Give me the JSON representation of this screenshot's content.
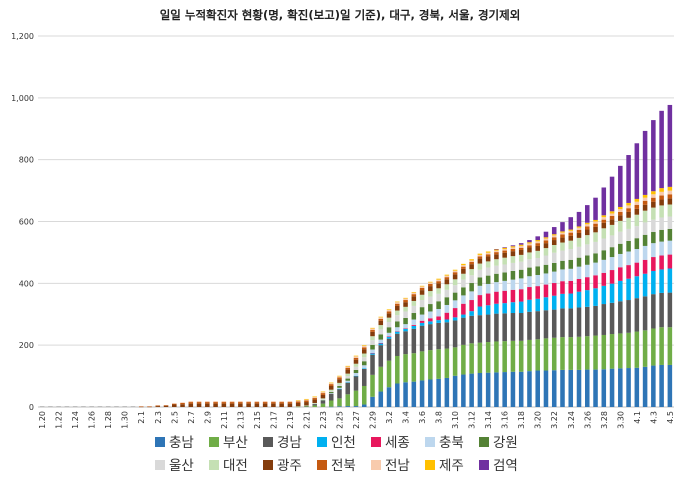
{
  "chart_data": {
    "type": "bar",
    "stacked": true,
    "title": "일일 누적확진자 현황(명, 확진(보고)일 기준), 대구, 경북, 서울, 경기제외",
    "xlabel": "",
    "ylabel": "",
    "ylim": [
      0,
      1200
    ],
    "yticks": [
      "0",
      "200",
      "400",
      "600",
      "800",
      "1,000",
      "1,200"
    ],
    "grid": "horizontal",
    "legend_position": "bottom",
    "categories": [
      "1.20",
      "1.21",
      "1.22",
      "1.23",
      "1.24",
      "1.25",
      "1.26",
      "1.27",
      "1.28",
      "1.29",
      "1.30",
      "1.31",
      "2.1",
      "2.2",
      "2.3",
      "2.4",
      "2.5",
      "2.6",
      "2.7",
      "2.8",
      "2.9",
      "2.10",
      "2.11",
      "2.12",
      "2.13",
      "2.14",
      "2.15",
      "2.16",
      "2.17",
      "2.18",
      "2.19",
      "2.20",
      "2.21",
      "2.22",
      "2.23",
      "2.24",
      "2.25",
      "2.26",
      "2.27",
      "2.28",
      "2.29",
      "3.1",
      "3.2",
      "3.3",
      "3.4",
      "3.5",
      "3.6",
      "3.7",
      "3.8",
      "3.9",
      "3.10",
      "3.11",
      "3.12",
      "3.13",
      "3.14",
      "3.15",
      "3.16",
      "3.17",
      "3.18",
      "3.19",
      "3.20",
      "3.21",
      "3.22",
      "3.23",
      "3.24",
      "3.25",
      "3.26",
      "3.27",
      "3.28",
      "3.29",
      "3.30",
      "3.31",
      "4.1",
      "4.2",
      "4.3",
      "4.4",
      "4.5"
    ],
    "tick_labels_shown": [
      "1.20",
      "1.22",
      "1.24",
      "1.26",
      "1.28",
      "1.30",
      "2.1",
      "2.3",
      "2.5",
      "2.7",
      "2.9",
      "2.11",
      "2.13",
      "2.15",
      "2.17",
      "2.19",
      "2.21",
      "2.23",
      "2.25",
      "2.27",
      "2.29",
      "3.2",
      "3.4",
      "3.6",
      "3.8",
      "3.10",
      "3.12",
      "3.14",
      "3.16",
      "3.18",
      "3.20",
      "3.22",
      "3.24",
      "3.26",
      "3.28",
      "3.30",
      "4.1",
      "4.3",
      "4.5"
    ],
    "series": [
      {
        "name": "충남",
        "color": "#2E75B6",
        "values": [
          0,
          0,
          0,
          0,
          0,
          0,
          0,
          0,
          0,
          0,
          0,
          0,
          0,
          0,
          0,
          0,
          0,
          0,
          0,
          0,
          0,
          0,
          0,
          0,
          0,
          0,
          0,
          0,
          0,
          0,
          0,
          0,
          0,
          0,
          0,
          1,
          2,
          3,
          3,
          8,
          33,
          50,
          64,
          76,
          80,
          82,
          86,
          89,
          91,
          94,
          101,
          105,
          108,
          110,
          111,
          112,
          113,
          114,
          114,
          116,
          118,
          118,
          119,
          120,
          120,
          120,
          121,
          121,
          122,
          124,
          125,
          126,
          127,
          130,
          134,
          136,
          136
        ]
      },
      {
        "name": "부산",
        "color": "#70AD47",
        "values": [
          0,
          0,
          0,
          0,
          0,
          0,
          0,
          0,
          0,
          0,
          0,
          0,
          0,
          0,
          0,
          0,
          0,
          0,
          0,
          0,
          0,
          0,
          0,
          0,
          0,
          0,
          0,
          0,
          0,
          0,
          0,
          1,
          2,
          5,
          11,
          20,
          26,
          38,
          50,
          60,
          71,
          80,
          86,
          89,
          91,
          92,
          94,
          95,
          96,
          95,
          92,
          96,
          98,
          98,
          99,
          100,
          100,
          100,
          100,
          101,
          101,
          104,
          105,
          106,
          106,
          107,
          108,
          110,
          111,
          112,
          113,
          114,
          117,
          118,
          120,
          122,
          122
        ]
      },
      {
        "name": "경남",
        "color": "#595959",
        "values": [
          0,
          0,
          0,
          0,
          0,
          0,
          0,
          0,
          0,
          0,
          0,
          0,
          0,
          0,
          0,
          0,
          0,
          0,
          0,
          0,
          0,
          0,
          0,
          0,
          0,
          0,
          0,
          0,
          0,
          0,
          0,
          0,
          2,
          5,
          10,
          22,
          30,
          38,
          47,
          55,
          65,
          70,
          71,
          72,
          74,
          79,
          83,
          84,
          85,
          85,
          87,
          88,
          89,
          89,
          89,
          90,
          90,
          90,
          90,
          91,
          91,
          91,
          91,
          93,
          93,
          95,
          95,
          96,
          100,
          101,
          104,
          106,
          108,
          110,
          111,
          111,
          112
        ]
      },
      {
        "name": "인천",
        "color": "#00B0F0",
        "values": [
          0,
          0,
          0,
          0,
          0,
          0,
          0,
          0,
          0,
          0,
          0,
          0,
          0,
          0,
          0,
          0,
          0,
          0,
          0,
          0,
          0,
          0,
          0,
          0,
          0,
          0,
          0,
          0,
          0,
          0,
          0,
          0,
          0,
          0,
          0,
          0,
          1,
          1,
          1,
          2,
          5,
          6,
          6,
          7,
          8,
          9,
          9,
          9,
          9,
          9,
          10,
          10,
          15,
          28,
          30,
          32,
          33,
          35,
          37,
          39,
          40,
          42,
          45,
          47,
          48,
          51,
          54,
          57,
          59,
          62,
          66,
          69,
          71,
          73,
          75,
          76,
          78
        ]
      },
      {
        "name": "세종",
        "color": "#E8175D",
        "values": [
          0,
          0,
          0,
          0,
          0,
          0,
          0,
          0,
          0,
          0,
          0,
          0,
          0,
          0,
          0,
          0,
          0,
          0,
          0,
          0,
          0,
          0,
          0,
          0,
          0,
          0,
          0,
          0,
          0,
          0,
          0,
          0,
          0,
          0,
          0,
          0,
          0,
          0,
          0,
          0,
          1,
          1,
          1,
          1,
          1,
          3,
          7,
          10,
          12,
          22,
          30,
          35,
          36,
          37,
          38,
          39,
          40,
          40,
          40,
          41,
          41,
          41,
          41,
          41,
          41,
          41,
          42,
          42,
          42,
          44,
          44,
          44,
          44,
          45,
          45,
          45,
          45
        ]
      },
      {
        "name": "충북",
        "color": "#BDD7EE",
        "values": [
          0,
          0,
          0,
          0,
          0,
          0,
          0,
          0,
          0,
          0,
          0,
          0,
          0,
          0,
          0,
          0,
          0,
          0,
          0,
          0,
          0,
          0,
          0,
          0,
          0,
          0,
          0,
          0,
          0,
          0,
          0,
          0,
          0,
          0,
          1,
          2,
          3,
          5,
          9,
          10,
          11,
          11,
          12,
          13,
          14,
          18,
          20,
          22,
          24,
          25,
          25,
          27,
          28,
          30,
          31,
          31,
          32,
          33,
          35,
          35,
          36,
          36,
          37,
          38,
          39,
          40,
          40,
          41,
          42,
          42,
          43,
          44,
          44,
          45,
          45,
          45,
          45
        ]
      },
      {
        "name": "강원",
        "color": "#548235",
        "values": [
          0,
          0,
          0,
          0,
          0,
          0,
          0,
          0,
          0,
          0,
          0,
          0,
          0,
          0,
          0,
          0,
          0,
          0,
          0,
          0,
          0,
          0,
          0,
          0,
          0,
          0,
          0,
          0,
          0,
          0,
          0,
          0,
          0,
          0,
          1,
          4,
          6,
          7,
          10,
          13,
          15,
          17,
          18,
          19,
          20,
          21,
          24,
          24,
          25,
          25,
          25,
          26,
          27,
          27,
          27,
          27,
          27,
          28,
          28,
          28,
          28,
          28,
          28,
          28,
          29,
          29,
          30,
          30,
          31,
          32,
          33,
          34,
          35,
          36,
          36,
          38,
          38
        ]
      },
      {
        "name": "울산",
        "color": "#D9D9D9",
        "values": [
          0,
          0,
          0,
          0,
          0,
          0,
          0,
          0,
          0,
          0,
          0,
          0,
          0,
          0,
          0,
          0,
          0,
          0,
          0,
          0,
          0,
          0,
          0,
          0,
          0,
          0,
          0,
          0,
          0,
          0,
          0,
          0,
          0,
          1,
          2,
          3,
          5,
          8,
          10,
          13,
          15,
          16,
          17,
          20,
          21,
          23,
          23,
          24,
          24,
          24,
          24,
          25,
          25,
          25,
          26,
          26,
          26,
          26,
          26,
          27,
          27,
          30,
          33,
          33,
          35,
          35,
          36,
          37,
          38,
          38,
          39,
          39,
          39,
          40,
          40,
          40,
          40
        ]
      },
      {
        "name": "대전",
        "color": "#C5E0B4",
        "values": [
          0,
          0,
          0,
          0,
          0,
          0,
          0,
          0,
          0,
          0,
          0,
          0,
          0,
          0,
          0,
          0,
          0,
          0,
          0,
          0,
          0,
          0,
          0,
          0,
          0,
          0,
          0,
          0,
          0,
          0,
          0,
          1,
          1,
          2,
          3,
          4,
          5,
          8,
          10,
          12,
          13,
          14,
          14,
          15,
          15,
          16,
          17,
          18,
          18,
          18,
          19,
          19,
          20,
          20,
          20,
          21,
          22,
          22,
          22,
          22,
          23,
          24,
          25,
          26,
          27,
          29,
          30,
          31,
          33,
          34,
          35,
          36,
          37,
          38,
          39,
          39,
          39
        ]
      },
      {
        "name": "광주",
        "color": "#843C0C",
        "values": [
          0,
          0,
          0,
          0,
          0,
          0,
          0,
          0,
          0,
          0,
          0,
          0,
          1,
          1,
          3,
          4,
          8,
          9,
          11,
          11,
          11,
          11,
          11,
          11,
          11,
          11,
          11,
          11,
          11,
          11,
          11,
          11,
          11,
          11,
          11,
          12,
          12,
          13,
          13,
          14,
          14,
          14,
          14,
          15,
          15,
          15,
          15,
          16,
          16,
          16,
          16,
          16,
          16,
          16,
          16,
          16,
          16,
          16,
          16,
          16,
          16,
          16,
          16,
          16,
          16,
          16,
          18,
          18,
          18,
          18,
          18,
          19,
          19,
          19,
          19,
          19,
          20
        ]
      },
      {
        "name": "전북",
        "color": "#C55A11",
        "values": [
          0,
          0,
          0,
          0,
          0,
          0,
          0,
          0,
          0,
          0,
          0,
          0,
          1,
          1,
          2,
          2,
          3,
          4,
          5,
          5,
          5,
          5,
          5,
          5,
          5,
          5,
          5,
          5,
          5,
          5,
          5,
          5,
          5,
          5,
          6,
          6,
          6,
          6,
          6,
          6,
          6,
          6,
          6,
          7,
          7,
          7,
          7,
          7,
          7,
          7,
          7,
          7,
          7,
          7,
          7,
          7,
          7,
          7,
          7,
          7,
          9,
          9,
          9,
          10,
          10,
          10,
          10,
          10,
          10,
          11,
          11,
          12,
          13,
          13,
          13,
          13,
          13
        ]
      },
      {
        "name": "전남",
        "color": "#F8CBAD",
        "values": [
          0,
          0,
          0,
          0,
          0,
          0,
          0,
          0,
          0,
          0,
          0,
          0,
          0,
          0,
          0,
          0,
          1,
          2,
          3,
          3,
          3,
          3,
          3,
          3,
          3,
          3,
          3,
          3,
          3,
          3,
          3,
          3,
          3,
          3,
          3,
          3,
          3,
          4,
          5,
          5,
          5,
          5,
          5,
          5,
          5,
          5,
          5,
          5,
          5,
          5,
          5,
          5,
          5,
          5,
          5,
          5,
          5,
          5,
          6,
          6,
          6,
          6,
          6,
          6,
          6,
          7,
          7,
          7,
          8,
          8,
          9,
          9,
          10,
          10,
          11,
          12,
          12
        ]
      },
      {
        "name": "제주",
        "color": "#FFC000",
        "values": [
          0,
          0,
          0,
          0,
          0,
          0,
          0,
          0,
          0,
          0,
          0,
          0,
          0,
          0,
          0,
          0,
          0,
          0,
          0,
          0,
          0,
          0,
          0,
          0,
          0,
          0,
          0,
          0,
          0,
          0,
          0,
          1,
          2,
          2,
          2,
          2,
          2,
          2,
          2,
          2,
          2,
          2,
          2,
          2,
          2,
          2,
          2,
          2,
          3,
          3,
          3,
          4,
          4,
          4,
          4,
          4,
          4,
          4,
          4,
          4,
          4,
          4,
          4,
          4,
          4,
          4,
          5,
          5,
          6,
          7,
          7,
          8,
          9,
          9,
          10,
          12,
          12
        ]
      },
      {
        "name": "검역",
        "color": "#7030A0",
        "values": [
          0,
          0,
          0,
          0,
          0,
          0,
          0,
          0,
          0,
          0,
          0,
          0,
          0,
          0,
          0,
          0,
          0,
          0,
          0,
          0,
          0,
          0,
          0,
          0,
          0,
          0,
          0,
          0,
          0,
          0,
          0,
          0,
          0,
          0,
          0,
          0,
          0,
          0,
          0,
          0,
          0,
          0,
          0,
          0,
          0,
          0,
          0,
          0,
          0,
          0,
          0,
          0,
          0,
          0,
          0,
          1,
          2,
          3,
          5,
          7,
          12,
          18,
          23,
          30,
          40,
          47,
          57,
          72,
          90,
          112,
          133,
          155,
          180,
          207,
          230,
          250,
          265
        ]
      }
    ]
  }
}
